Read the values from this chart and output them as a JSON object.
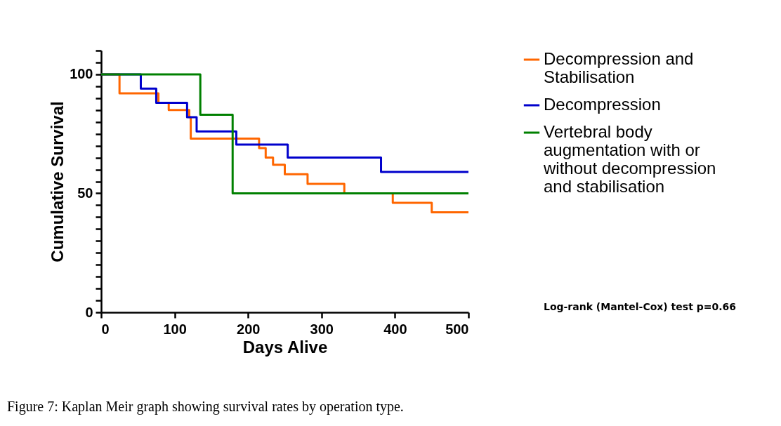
{
  "chart_data": {
    "type": "step",
    "xlabel": "Days Alive",
    "ylabel": "Cumulative Survival",
    "xlim": [
      0,
      500
    ],
    "xticks": [
      0,
      100,
      200,
      300,
      400,
      500
    ],
    "ylim": [
      0,
      110
    ],
    "yticks": [
      0,
      {
        "value": 5,
        "label": null
      },
      {
        "value": 10,
        "label": null
      },
      {
        "value": 15,
        "label": null
      },
      {
        "value": 20,
        "label": null
      },
      {
        "value": 25,
        "label": null
      },
      {
        "value": 30,
        "label": null
      },
      {
        "value": 35,
        "label": null
      },
      {
        "value": 40,
        "label": null
      },
      {
        "value": 45,
        "label": null
      },
      50,
      {
        "value": 55,
        "label": null
      },
      {
        "value": 60,
        "label": null
      },
      {
        "value": 65,
        "label": null
      },
      {
        "value": 70,
        "label": null
      },
      {
        "value": 75,
        "label": null
      },
      {
        "value": 80,
        "label": null
      },
      {
        "value": 85,
        "label": null
      },
      {
        "value": 90,
        "label": null
      },
      {
        "value": 95,
        "label": null
      },
      100,
      {
        "value": 105,
        "label": null
      },
      {
        "value": 110,
        "label": null
      }
    ],
    "grid": false,
    "legend": "right",
    "line_style": "solid",
    "marker": "none",
    "series": [
      {
        "name": "Decompression and Stabilisation",
        "color": "#ff6600",
        "x": [
          0,
          25,
          78,
          92,
          120,
          122,
          215,
          224,
          234,
          250,
          281,
          331,
          397,
          450,
          500
        ],
        "values": [
          100,
          92,
          88,
          85,
          82,
          73,
          69,
          65,
          62,
          58,
          54,
          50,
          46,
          42,
          42
        ]
      },
      {
        "name": "Decompression",
        "color": "#0000cc",
        "x": [
          0,
          54,
          75,
          117,
          130,
          184,
          254,
          381,
          500
        ],
        "values": [
          100,
          94,
          88,
          82,
          76,
          70.5,
          65,
          59,
          59
        ]
      },
      {
        "name": "Vertebral body augmentation with or without decompression and stabilisation",
        "color": "#008000",
        "x": [
          0,
          135,
          179,
          500
        ],
        "values": [
          100,
          83,
          50,
          50
        ]
      }
    ],
    "annotations": [
      {
        "text": "Log-rank (Mantel-Cox) test p=0.66"
      },
      {
        "text": "Figure 7: Kaplan Meir graph showing survival rates by operation type."
      }
    ]
  }
}
